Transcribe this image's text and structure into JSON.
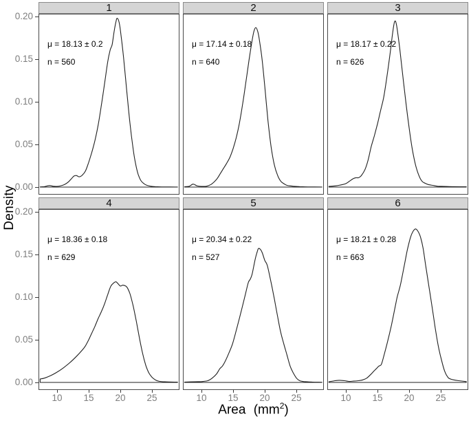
{
  "figure": {
    "y_axis": {
      "title": "Density",
      "tick_labels": [
        "0.20",
        "0.15",
        "0.10",
        "0.05",
        "0.00"
      ],
      "tick_values": [
        0.2,
        0.15,
        0.1,
        0.05,
        0.0
      ]
    },
    "x_axis": {
      "title_text": "Area (mm",
      "title_superscript": "2",
      "title_suffix": ")",
      "tick_labels": [
        "10",
        "15",
        "20",
        "25"
      ],
      "tick_values": [
        10,
        15,
        20,
        25
      ]
    },
    "colors": {
      "background": "#ffffff",
      "strip_bg": "#d5d5d5",
      "strip_border": "#898989",
      "panel_border": "#474747",
      "curve": "#1f1f1f",
      "tick_label": "#7d7d7d",
      "tick_mark": "#383838",
      "text": "#000000"
    }
  },
  "chart_data": {
    "type": "line",
    "subtype": "kernel-density-facets",
    "title": "",
    "xlabel": "Area (mm²)",
    "ylabel": "Density",
    "xlim": [
      7.2,
      29.2
    ],
    "ylim": [
      0,
      0.205
    ],
    "x_ticks": [
      10,
      15,
      20,
      25
    ],
    "y_ticks": [
      0.0,
      0.05,
      0.1,
      0.15,
      0.2
    ],
    "grid": false,
    "legend": "none",
    "facet_labels": [
      "1",
      "2",
      "3",
      "4",
      "5",
      "6"
    ],
    "panels": [
      {
        "label": "1",
        "mu_text": "μ = 18.13 ± 0.2",
        "n_text": "n = 560",
        "mu": 18.13,
        "mu_err": 0.2,
        "n": 560,
        "points": [
          [
            7.35,
            0.0002
          ],
          [
            8,
            0.0005
          ],
          [
            8.8,
            0.0018
          ],
          [
            9.4,
            0.001
          ],
          [
            10,
            0.0008
          ],
          [
            10.6,
            0.0015
          ],
          [
            11.2,
            0.003
          ],
          [
            11.8,
            0.006
          ],
          [
            12.3,
            0.01
          ],
          [
            12.7,
            0.013
          ],
          [
            13.1,
            0.0135
          ],
          [
            13.5,
            0.012
          ],
          [
            14,
            0.014
          ],
          [
            14.5,
            0.019
          ],
          [
            15,
            0.029
          ],
          [
            15.5,
            0.041
          ],
          [
            16,
            0.055
          ],
          [
            16.5,
            0.073
          ],
          [
            17,
            0.096
          ],
          [
            17.5,
            0.121
          ],
          [
            18,
            0.147
          ],
          [
            18.4,
            0.161
          ],
          [
            18.7,
            0.167
          ],
          [
            19,
            0.182
          ],
          [
            19.3,
            0.194
          ],
          [
            19.5,
            0.198
          ],
          [
            19.8,
            0.193
          ],
          [
            20.1,
            0.178
          ],
          [
            20.5,
            0.152
          ],
          [
            21,
            0.113
          ],
          [
            21.5,
            0.075
          ],
          [
            22,
            0.045
          ],
          [
            22.4,
            0.027
          ],
          [
            22.8,
            0.015
          ],
          [
            23.2,
            0.008
          ],
          [
            23.7,
            0.004
          ],
          [
            24.2,
            0.002
          ],
          [
            24.8,
            0.001
          ],
          [
            25.5,
            0.0005
          ],
          [
            27,
            0.0002
          ],
          [
            29,
            0.0001
          ]
        ]
      },
      {
        "label": "2",
        "mu_text": "μ = 17.14 ± 0.18",
        "n_text": "n = 640",
        "mu": 17.14,
        "mu_err": 0.18,
        "n": 640,
        "points": [
          [
            7.35,
            0.0004
          ],
          [
            8.1,
            0.001
          ],
          [
            8.7,
            0.0035
          ],
          [
            9.3,
            0.0015
          ],
          [
            10,
            0.0008
          ],
          [
            10.8,
            0.001
          ],
          [
            11.5,
            0.003
          ],
          [
            12,
            0.006
          ],
          [
            12.5,
            0.01
          ],
          [
            13,
            0.016
          ],
          [
            13.5,
            0.022
          ],
          [
            14,
            0.028
          ],
          [
            14.5,
            0.035
          ],
          [
            15,
            0.045
          ],
          [
            15.5,
            0.058
          ],
          [
            16,
            0.075
          ],
          [
            16.5,
            0.097
          ],
          [
            17,
            0.122
          ],
          [
            17.5,
            0.148
          ],
          [
            18,
            0.172
          ],
          [
            18.3,
            0.183
          ],
          [
            18.6,
            0.187
          ],
          [
            18.9,
            0.182
          ],
          [
            19.2,
            0.17
          ],
          [
            19.6,
            0.148
          ],
          [
            20,
            0.118
          ],
          [
            20.5,
            0.078
          ],
          [
            21,
            0.047
          ],
          [
            21.5,
            0.026
          ],
          [
            22,
            0.014
          ],
          [
            22.5,
            0.007
          ],
          [
            23,
            0.004
          ],
          [
            23.5,
            0.002
          ],
          [
            24.5,
            0.001
          ],
          [
            25.5,
            0.0005
          ],
          [
            27,
            0.0002
          ],
          [
            29,
            0.0001
          ]
        ]
      },
      {
        "label": "3",
        "mu_text": "μ = 18.17 ± 0.22",
        "n_text": "n = 626",
        "mu": 18.17,
        "mu_err": 0.22,
        "n": 626,
        "points": [
          [
            7.35,
            0.0008
          ],
          [
            8.5,
            0.0015
          ],
          [
            9.2,
            0.0025
          ],
          [
            10,
            0.004
          ],
          [
            10.6,
            0.007
          ],
          [
            11.2,
            0.01
          ],
          [
            11.6,
            0.011
          ],
          [
            12,
            0.011
          ],
          [
            12.4,
            0.013
          ],
          [
            13,
            0.02
          ],
          [
            13.5,
            0.031
          ],
          [
            14,
            0.047
          ],
          [
            14.5,
            0.06
          ],
          [
            15,
            0.074
          ],
          [
            15.5,
            0.09
          ],
          [
            16,
            0.106
          ],
          [
            16.5,
            0.13
          ],
          [
            17,
            0.157
          ],
          [
            17.4,
            0.181
          ],
          [
            17.7,
            0.194
          ],
          [
            18,
            0.19
          ],
          [
            18.5,
            0.163
          ],
          [
            19,
            0.13
          ],
          [
            19.5,
            0.098
          ],
          [
            20,
            0.069
          ],
          [
            20.5,
            0.044
          ],
          [
            21,
            0.026
          ],
          [
            21.5,
            0.014
          ],
          [
            22,
            0.007
          ],
          [
            22.5,
            0.0045
          ],
          [
            23,
            0.003
          ],
          [
            23.7,
            0.002
          ],
          [
            24.5,
            0.001
          ],
          [
            25.5,
            0.0008
          ],
          [
            27,
            0.0005
          ],
          [
            29,
            0.0003
          ]
        ]
      },
      {
        "label": "4",
        "mu_text": "μ = 18.36 ± 0.18",
        "n_text": "n = 629",
        "mu": 18.36,
        "mu_err": 0.18,
        "n": 629,
        "points": [
          [
            7.35,
            0.004
          ],
          [
            8,
            0.005
          ],
          [
            9,
            0.008
          ],
          [
            10,
            0.012
          ],
          [
            11,
            0.017
          ],
          [
            12,
            0.023
          ],
          [
            13,
            0.03
          ],
          [
            14,
            0.038
          ],
          [
            14.5,
            0.043
          ],
          [
            15,
            0.05
          ],
          [
            15.5,
            0.058
          ],
          [
            16,
            0.066
          ],
          [
            16.5,
            0.075
          ],
          [
            17,
            0.083
          ],
          [
            17.5,
            0.092
          ],
          [
            18,
            0.103
          ],
          [
            18.5,
            0.113
          ],
          [
            19,
            0.117
          ],
          [
            19.3,
            0.118
          ],
          [
            19.6,
            0.116
          ],
          [
            20,
            0.113
          ],
          [
            20.4,
            0.114
          ],
          [
            21,
            0.112
          ],
          [
            21.5,
            0.104
          ],
          [
            22,
            0.09
          ],
          [
            22.5,
            0.072
          ],
          [
            23,
            0.052
          ],
          [
            23.5,
            0.034
          ],
          [
            24,
            0.02
          ],
          [
            24.5,
            0.011
          ],
          [
            25,
            0.006
          ],
          [
            25.5,
            0.003
          ],
          [
            26,
            0.0015
          ],
          [
            27,
            0.0007
          ],
          [
            29,
            0.0003
          ]
        ]
      },
      {
        "label": "5",
        "mu_text": "μ = 20.34 ± 0.22",
        "n_text": "n = 527",
        "mu": 20.34,
        "mu_err": 0.22,
        "n": 527,
        "points": [
          [
            7.35,
            0.0004
          ],
          [
            9,
            0.0008
          ],
          [
            10,
            0.001
          ],
          [
            11,
            0.002
          ],
          [
            11.7,
            0.005
          ],
          [
            12.4,
            0.01
          ],
          [
            12.9,
            0.016
          ],
          [
            13.3,
            0.019
          ],
          [
            13.7,
            0.024
          ],
          [
            14.2,
            0.032
          ],
          [
            14.9,
            0.045
          ],
          [
            15.5,
            0.061
          ],
          [
            16.2,
            0.081
          ],
          [
            16.9,
            0.102
          ],
          [
            17.4,
            0.117
          ],
          [
            17.7,
            0.121
          ],
          [
            18,
            0.127
          ],
          [
            18.5,
            0.145
          ],
          [
            18.8,
            0.153
          ],
          [
            19,
            0.157
          ],
          [
            19.3,
            0.156
          ],
          [
            19.6,
            0.152
          ],
          [
            20,
            0.143
          ],
          [
            20.4,
            0.137
          ],
          [
            21,
            0.117
          ],
          [
            21.5,
            0.098
          ],
          [
            22,
            0.078
          ],
          [
            22.5,
            0.059
          ],
          [
            23,
            0.045
          ],
          [
            23.5,
            0.032
          ],
          [
            24,
            0.019
          ],
          [
            24.5,
            0.011
          ],
          [
            25,
            0.005
          ],
          [
            25.5,
            0.002
          ],
          [
            26.2,
            0.001
          ],
          [
            27.5,
            0.0004
          ],
          [
            29,
            0.0002
          ]
        ]
      },
      {
        "label": "6",
        "mu_text": "μ = 18.21 ± 0.28",
        "n_text": "n = 663",
        "mu": 18.21,
        "mu_err": 0.28,
        "n": 663,
        "points": [
          [
            7.35,
            0.0008
          ],
          [
            8.3,
            0.002
          ],
          [
            9,
            0.0025
          ],
          [
            9.8,
            0.002
          ],
          [
            10.5,
            0.0012
          ],
          [
            11.2,
            0.0015
          ],
          [
            12,
            0.002
          ],
          [
            12.7,
            0.003
          ],
          [
            13.3,
            0.005
          ],
          [
            13.9,
            0.009
          ],
          [
            14.4,
            0.013
          ],
          [
            14.8,
            0.016
          ],
          [
            15.2,
            0.019
          ],
          [
            15.6,
            0.021
          ],
          [
            16,
            0.031
          ],
          [
            16.6,
            0.048
          ],
          [
            17.2,
            0.067
          ],
          [
            17.8,
            0.089
          ],
          [
            18.1,
            0.1
          ],
          [
            18.4,
            0.108
          ],
          [
            18.7,
            0.117
          ],
          [
            19.2,
            0.136
          ],
          [
            19.7,
            0.155
          ],
          [
            20.2,
            0.17
          ],
          [
            20.6,
            0.177
          ],
          [
            21,
            0.18
          ],
          [
            21.4,
            0.177
          ],
          [
            21.8,
            0.17
          ],
          [
            22.2,
            0.157
          ],
          [
            22.6,
            0.137
          ],
          [
            23.1,
            0.113
          ],
          [
            23.6,
            0.089
          ],
          [
            24.1,
            0.064
          ],
          [
            24.6,
            0.042
          ],
          [
            25.1,
            0.026
          ],
          [
            25.6,
            0.013
          ],
          [
            26.1,
            0.006
          ],
          [
            26.5,
            0.004
          ],
          [
            27,
            0.003
          ],
          [
            27.8,
            0.002
          ],
          [
            29,
            0.001
          ]
        ]
      }
    ]
  }
}
